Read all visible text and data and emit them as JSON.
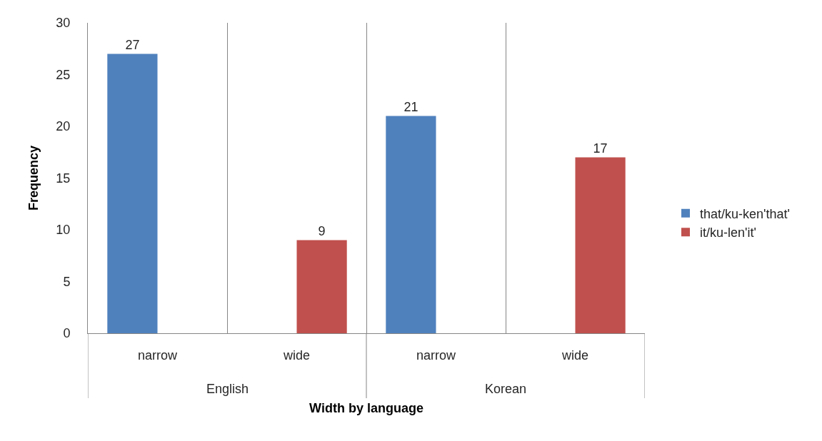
{
  "chart_data": {
    "type": "bar",
    "xlabel": "Width by language",
    "ylabel": "Frequency",
    "categories": [
      "narrow",
      "wide",
      "narrow",
      "wide"
    ],
    "series": [
      {
        "name": "that/ku-ken'that'",
        "color": "#4f81bd",
        "values": [
          27,
          null,
          21,
          null
        ]
      },
      {
        "name": "it/ku-len'it'",
        "color": "#c0504d",
        "values": [
          null,
          9,
          null,
          17
        ]
      }
    ],
    "ylim": [
      0,
      30
    ],
    "yticks": [
      0,
      5,
      10,
      15,
      20,
      25,
      30
    ],
    "grid": "x",
    "legend": "right",
    "data_labels": true,
    "annotations": [
      "English",
      "Korean"
    ]
  }
}
